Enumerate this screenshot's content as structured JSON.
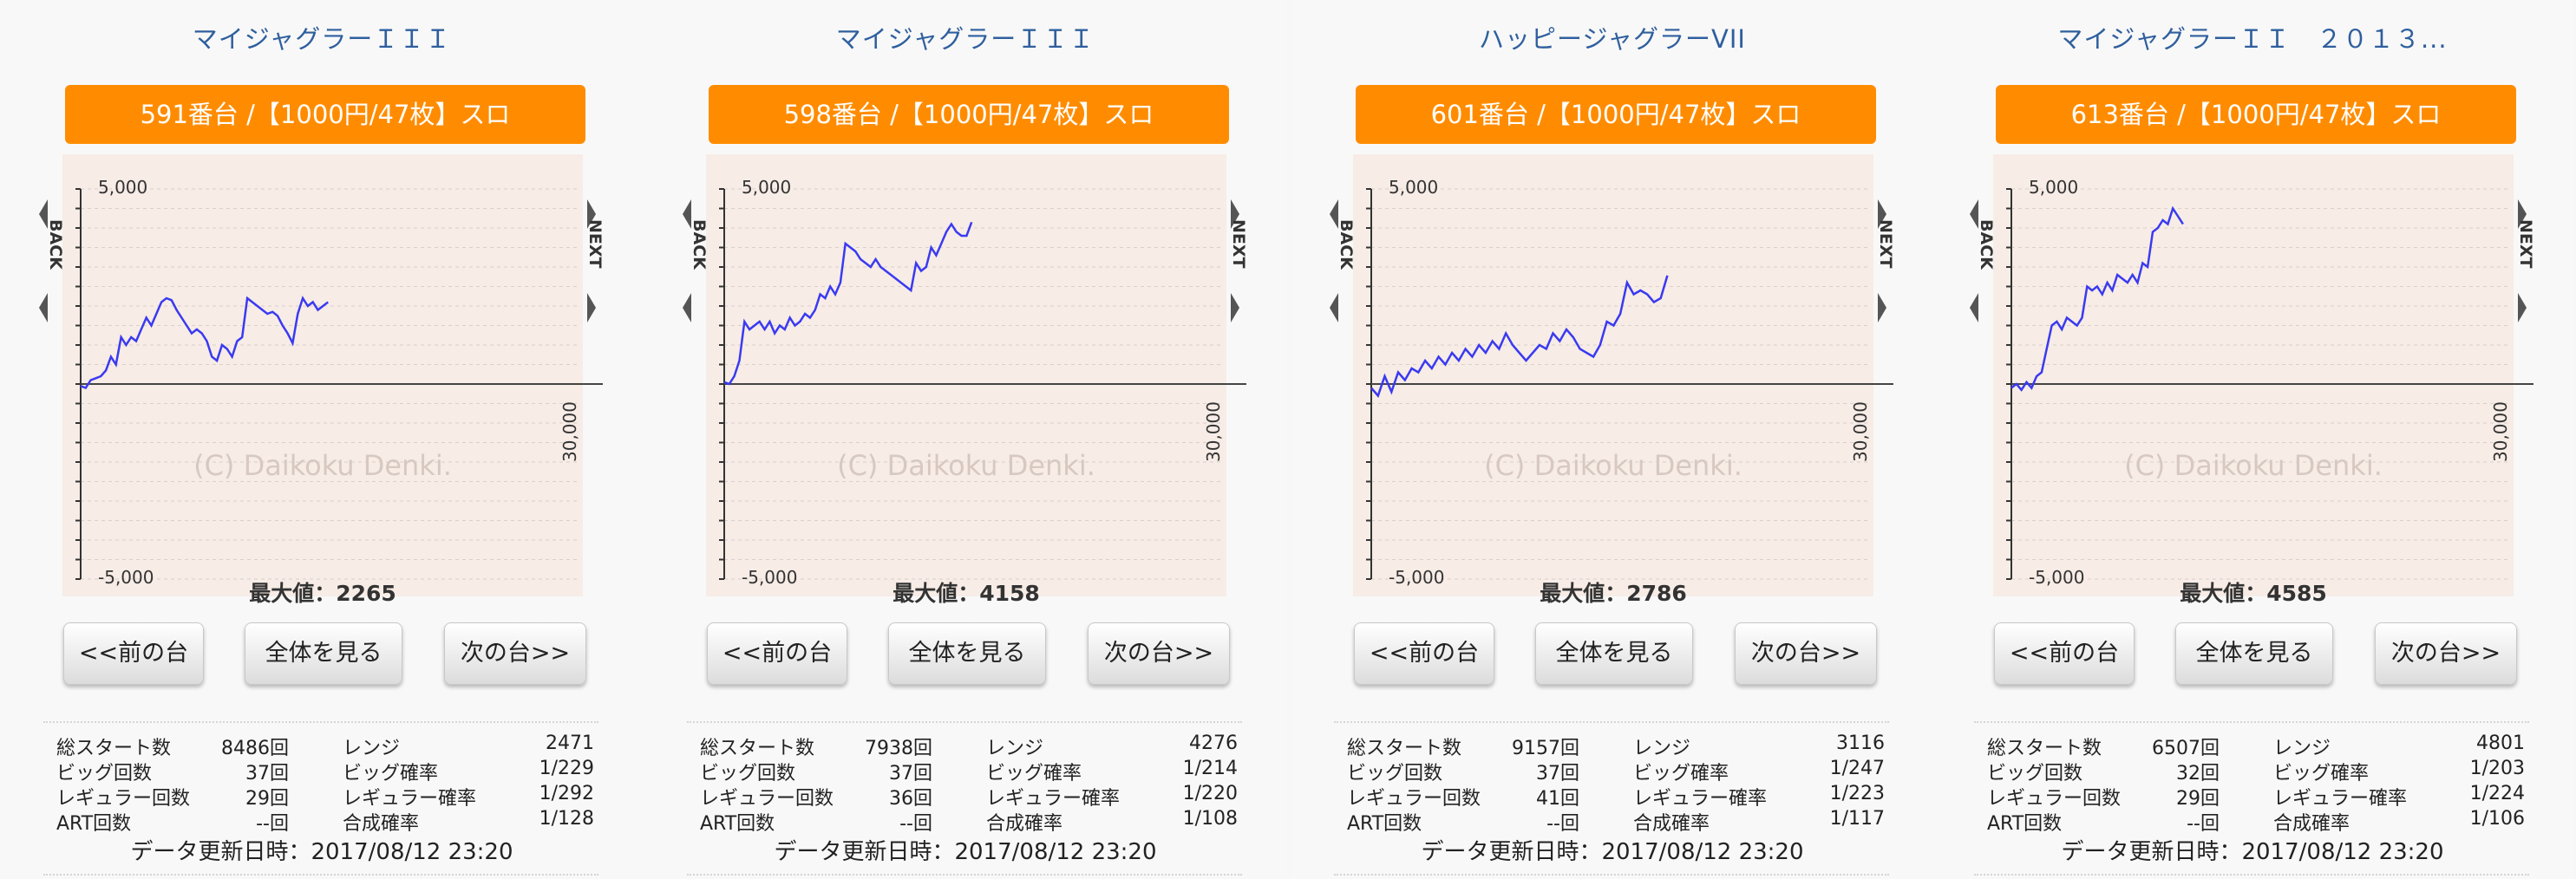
{
  "panels": [
    {
      "title": "マイジャグラーＩＩＩ",
      "machine": "591番台 /【1000円/47枚】スロ",
      "max_label": "最大値：2265",
      "buttons": {
        "prev": "<<前の台",
        "all": "全体を見る",
        "next": "次の台>>"
      },
      "stats": [
        {
          "k1": "総スタート数",
          "v1": "8486回",
          "k2": "レンジ",
          "v2": "2471"
        },
        {
          "k1": "ビッグ回数",
          "v1": "37回",
          "k2": "ビッグ確率",
          "v2": "1/229"
        },
        {
          "k1": "レギュラー回数",
          "v1": "29回",
          "k2": "レギュラー確率",
          "v2": "1/292"
        },
        {
          "k1": "ART回数",
          "v1": "--回",
          "k2": "合成確率",
          "v2": "1/128"
        }
      ],
      "updated": "データ更新日時：2017/08/12 23:20",
      "chart": {
        "ytick_top": "5,000",
        "ytick_bottom": "-5,000",
        "x_end": "30,000",
        "watermark": "(C) Daikoku Denki.",
        "back_label": "BACK",
        "next_label": "NEXT",
        "line_color": "#3a3af0",
        "bg_color": "#f7ece6",
        "ylim": [
          -5000,
          5000
        ],
        "xlim": [
          0,
          30000
        ],
        "points": [
          [
            0,
            -50
          ],
          [
            300,
            -100
          ],
          [
            600,
            100
          ],
          [
            900,
            150
          ],
          [
            1200,
            200
          ],
          [
            1500,
            350
          ],
          [
            1800,
            700
          ],
          [
            2100,
            500
          ],
          [
            2400,
            1200
          ],
          [
            2700,
            1000
          ],
          [
            3000,
            1200
          ],
          [
            3300,
            1100
          ],
          [
            3600,
            1400
          ],
          [
            3900,
            1700
          ],
          [
            4200,
            1500
          ],
          [
            4500,
            1800
          ],
          [
            4800,
            2100
          ],
          [
            5100,
            2200
          ],
          [
            5400,
            2150
          ],
          [
            5700,
            1900
          ],
          [
            6000,
            1700
          ],
          [
            6300,
            1500
          ],
          [
            6600,
            1300
          ],
          [
            6900,
            1400
          ],
          [
            7200,
            1300
          ],
          [
            7500,
            1100
          ],
          [
            7800,
            700
          ],
          [
            8100,
            600
          ],
          [
            8400,
            1000
          ],
          [
            8700,
            900
          ],
          [
            9000,
            700
          ],
          [
            9300,
            1100
          ],
          [
            9600,
            1200
          ],
          [
            9900,
            2200
          ],
          [
            10200,
            2100
          ],
          [
            10500,
            2000
          ],
          [
            10800,
            1900
          ],
          [
            11100,
            1800
          ],
          [
            11400,
            1850
          ],
          [
            11700,
            1750
          ],
          [
            12000,
            1500
          ],
          [
            12300,
            1300
          ],
          [
            12600,
            1050
          ],
          [
            12900,
            1800
          ],
          [
            13200,
            2200
          ],
          [
            13500,
            2000
          ],
          [
            13800,
            2100
          ],
          [
            14100,
            1900
          ],
          [
            14400,
            2000
          ],
          [
            14700,
            2100
          ]
        ]
      }
    },
    {
      "title": "マイジャグラーＩＩＩ",
      "machine": "598番台 /【1000円/47枚】スロ",
      "max_label": "最大値：4158",
      "buttons": {
        "prev": "<<前の台",
        "all": "全体を見る",
        "next": "次の台>>"
      },
      "stats": [
        {
          "k1": "総スタート数",
          "v1": "7938回",
          "k2": "レンジ",
          "v2": "4276"
        },
        {
          "k1": "ビッグ回数",
          "v1": "37回",
          "k2": "ビッグ確率",
          "v2": "1/214"
        },
        {
          "k1": "レギュラー回数",
          "v1": "36回",
          "k2": "レギュラー確率",
          "v2": "1/220"
        },
        {
          "k1": "ART回数",
          "v1": "--回",
          "k2": "合成確率",
          "v2": "1/108"
        }
      ],
      "updated": "データ更新日時：2017/08/12 23:20",
      "chart": {
        "ytick_top": "5,000",
        "ytick_bottom": "-5,000",
        "x_end": "30,000",
        "watermark": "(C) Daikoku Denki.",
        "back_label": "BACK",
        "next_label": "NEXT",
        "line_color": "#3a3af0",
        "bg_color": "#f7ece6",
        "ylim": [
          -5000,
          5000
        ],
        "xlim": [
          0,
          30000
        ],
        "points": [
          [
            0,
            50
          ],
          [
            300,
            0
          ],
          [
            600,
            200
          ],
          [
            900,
            600
          ],
          [
            1200,
            1600
          ],
          [
            1500,
            1400
          ],
          [
            1800,
            1500
          ],
          [
            2100,
            1600
          ],
          [
            2400,
            1400
          ],
          [
            2700,
            1600
          ],
          [
            3000,
            1300
          ],
          [
            3300,
            1500
          ],
          [
            3600,
            1400
          ],
          [
            3900,
            1700
          ],
          [
            4200,
            1500
          ],
          [
            4500,
            1600
          ],
          [
            4800,
            1800
          ],
          [
            5100,
            1700
          ],
          [
            5400,
            1900
          ],
          [
            5700,
            2300
          ],
          [
            6000,
            2200
          ],
          [
            6300,
            2500
          ],
          [
            6600,
            2300
          ],
          [
            6900,
            2600
          ],
          [
            7200,
            3600
          ],
          [
            7500,
            3500
          ],
          [
            7800,
            3400
          ],
          [
            8100,
            3200
          ],
          [
            8400,
            3100
          ],
          [
            8700,
            3000
          ],
          [
            9000,
            3200
          ],
          [
            9300,
            3000
          ],
          [
            9600,
            2900
          ],
          [
            9900,
            2800
          ],
          [
            10200,
            2700
          ],
          [
            10500,
            2600
          ],
          [
            10800,
            2500
          ],
          [
            11100,
            2400
          ],
          [
            11400,
            3100
          ],
          [
            11700,
            2900
          ],
          [
            12000,
            3000
          ],
          [
            12300,
            3500
          ],
          [
            12600,
            3300
          ],
          [
            12900,
            3600
          ],
          [
            13200,
            3900
          ],
          [
            13500,
            4100
          ],
          [
            13800,
            3900
          ],
          [
            14100,
            3800
          ],
          [
            14400,
            3800
          ],
          [
            14700,
            4150
          ]
        ]
      }
    },
    {
      "title": "ハッピージャグラーVII",
      "machine": "601番台 /【1000円/47枚】スロ",
      "max_label": "最大値：2786",
      "buttons": {
        "prev": "<<前の台",
        "all": "全体を見る",
        "next": "次の台>>"
      },
      "stats": [
        {
          "k1": "総スタート数",
          "v1": "9157回",
          "k2": "レンジ",
          "v2": "3116"
        },
        {
          "k1": "ビッグ回数",
          "v1": "37回",
          "k2": "ビッグ確率",
          "v2": "1/247"
        },
        {
          "k1": "レギュラー回数",
          "v1": "41回",
          "k2": "レギュラー確率",
          "v2": "1/223"
        },
        {
          "k1": "ART回数",
          "v1": "--回",
          "k2": "合成確率",
          "v2": "1/117"
        }
      ],
      "updated": "データ更新日時：2017/08/12 23:20",
      "chart": {
        "ytick_top": "5,000",
        "ytick_bottom": "-5,000",
        "x_end": "30,000",
        "watermark": "(C) Daikoku Denki.",
        "back_label": "BACK",
        "next_label": "NEXT",
        "line_color": "#3a3af0",
        "bg_color": "#f7ece6",
        "ylim": [
          -5000,
          5000
        ],
        "xlim": [
          0,
          30000
        ],
        "points": [
          [
            0,
            -100
          ],
          [
            400,
            -300
          ],
          [
            800,
            200
          ],
          [
            1200,
            -200
          ],
          [
            1600,
            300
          ],
          [
            2000,
            100
          ],
          [
            2400,
            400
          ],
          [
            2800,
            300
          ],
          [
            3200,
            600
          ],
          [
            3600,
            400
          ],
          [
            4000,
            700
          ],
          [
            4400,
            500
          ],
          [
            4800,
            800
          ],
          [
            5200,
            600
          ],
          [
            5600,
            900
          ],
          [
            6000,
            700
          ],
          [
            6400,
            1000
          ],
          [
            6800,
            800
          ],
          [
            7200,
            1100
          ],
          [
            7600,
            900
          ],
          [
            8000,
            1300
          ],
          [
            8400,
            1000
          ],
          [
            8800,
            800
          ],
          [
            9200,
            600
          ],
          [
            9600,
            800
          ],
          [
            10000,
            1000
          ],
          [
            10400,
            900
          ],
          [
            10800,
            1300
          ],
          [
            11200,
            1100
          ],
          [
            11600,
            1400
          ],
          [
            12000,
            1200
          ],
          [
            12400,
            900
          ],
          [
            12800,
            800
          ],
          [
            13200,
            700
          ],
          [
            13600,
            1000
          ],
          [
            14000,
            1600
          ],
          [
            14400,
            1500
          ],
          [
            14800,
            1800
          ],
          [
            15200,
            2600
          ],
          [
            15600,
            2300
          ],
          [
            16000,
            2400
          ],
          [
            16400,
            2300
          ],
          [
            16800,
            2100
          ],
          [
            17200,
            2200
          ],
          [
            17600,
            2780
          ]
        ]
      }
    },
    {
      "title": "マイジャグラーＩＩ　２０１３...",
      "machine": "613番台 /【1000円/47枚】スロ",
      "max_label": "最大値：4585",
      "buttons": {
        "prev": "<<前の台",
        "all": "全体を見る",
        "next": "次の台>>"
      },
      "stats": [
        {
          "k1": "総スタート数",
          "v1": "6507回",
          "k2": "レンジ",
          "v2": "4801"
        },
        {
          "k1": "ビッグ回数",
          "v1": "32回",
          "k2": "ビッグ確率",
          "v2": "1/203"
        },
        {
          "k1": "レギュラー回数",
          "v1": "29回",
          "k2": "レギュラー確率",
          "v2": "1/224"
        },
        {
          "k1": "ART回数",
          "v1": "--回",
          "k2": "合成確率",
          "v2": "1/106"
        }
      ],
      "updated": "データ更新日時：2017/08/12 23:20",
      "chart": {
        "ytick_top": "5,000",
        "ytick_bottom": "-5,000",
        "x_end": "30,000",
        "watermark": "(C) Daikoku Denki.",
        "back_label": "BACK",
        "next_label": "NEXT",
        "line_color": "#3a3af0",
        "bg_color": "#f7ece6",
        "ylim": [
          -5000,
          5000
        ],
        "xlim": [
          0,
          30000
        ],
        "points": [
          [
            0,
            -100
          ],
          [
            300,
            0
          ],
          [
            600,
            -150
          ],
          [
            900,
            50
          ],
          [
            1200,
            -100
          ],
          [
            1500,
            200
          ],
          [
            1800,
            300
          ],
          [
            2100,
            900
          ],
          [
            2400,
            1500
          ],
          [
            2700,
            1600
          ],
          [
            3000,
            1400
          ],
          [
            3300,
            1700
          ],
          [
            3600,
            1600
          ],
          [
            3900,
            1500
          ],
          [
            4200,
            1700
          ],
          [
            4500,
            2500
          ],
          [
            4800,
            2400
          ],
          [
            5100,
            2500
          ],
          [
            5400,
            2300
          ],
          [
            5700,
            2600
          ],
          [
            6000,
            2400
          ],
          [
            6300,
            2800
          ],
          [
            6600,
            2700
          ],
          [
            6900,
            2600
          ],
          [
            7200,
            2800
          ],
          [
            7500,
            2600
          ],
          [
            7800,
            3100
          ],
          [
            8100,
            3000
          ],
          [
            8400,
            3900
          ],
          [
            8700,
            4000
          ],
          [
            9000,
            4200
          ],
          [
            9300,
            4100
          ],
          [
            9600,
            4500
          ],
          [
            9900,
            4300
          ],
          [
            10200,
            4100
          ]
        ]
      }
    }
  ]
}
